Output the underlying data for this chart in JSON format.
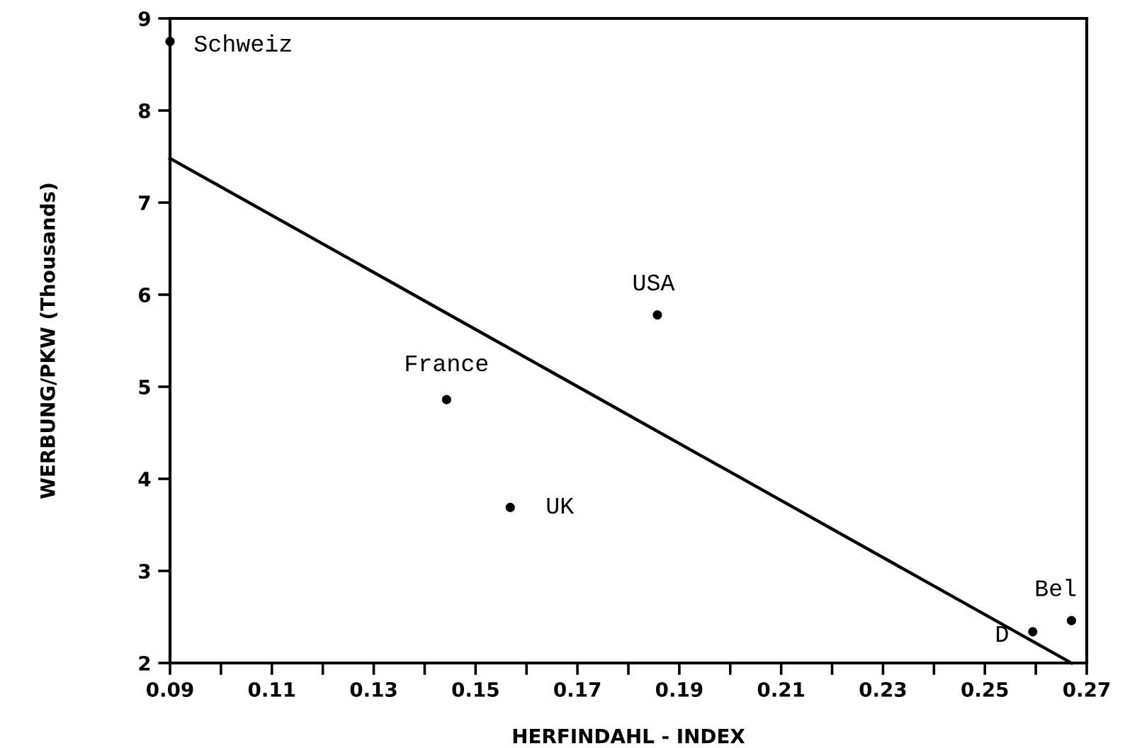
{
  "chart_data": {
    "type": "scatter",
    "xlabel": "HERFINDAHL - INDEX",
    "ylabel": "WERBUNG/PKW (Thousands)",
    "xlim": [
      0.09,
      0.27
    ],
    "ylim": [
      2,
      9
    ],
    "xticks": [
      0.09,
      {
        "value": 0.1,
        "label": null
      },
      0.11,
      {
        "value": 0.12,
        "label": null
      },
      0.13,
      {
        "value": 0.14,
        "label": null
      },
      0.15,
      {
        "value": 0.16,
        "label": null
      },
      0.17,
      {
        "value": 0.18,
        "label": null
      },
      0.19,
      {
        "value": 0.2,
        "label": null
      },
      0.21,
      {
        "value": 0.22,
        "label": null
      },
      0.23,
      {
        "value": 0.24,
        "label": null
      },
      0.25,
      {
        "value": 0.26,
        "label": null
      },
      0.27
    ],
    "yticks": [
      2,
      3,
      4,
      5,
      6,
      7,
      8,
      9
    ],
    "grid": false,
    "legend": false,
    "series": [
      {
        "color": "#000000",
        "marker": "circle",
        "x": [
          0.09,
          0.1857,
          0.1443,
          0.1568,
          0.2594,
          0.267
        ],
        "values": [
          8.75,
          5.78,
          4.86,
          3.69,
          2.34,
          2.46
        ]
      },
      {
        "type": "line",
        "color": "#000000",
        "marker": "none",
        "line_style": "solid",
        "x": [
          0.09,
          0.267
        ],
        "values": [
          7.48,
          2.0
        ]
      }
    ],
    "annotations": [
      {
        "text": "Schweiz",
        "x": 0.09,
        "y": 8.75
      },
      {
        "text": "USA",
        "x": 0.1857,
        "y": 5.78
      },
      {
        "text": "France",
        "x": 0.1443,
        "y": 4.86
      },
      {
        "text": "UK",
        "x": 0.1568,
        "y": 3.69
      },
      {
        "text": "D",
        "x": 0.2594,
        "y": 2.34
      },
      {
        "text": "Bel",
        "x": 0.267,
        "y": 2.46
      }
    ]
  }
}
